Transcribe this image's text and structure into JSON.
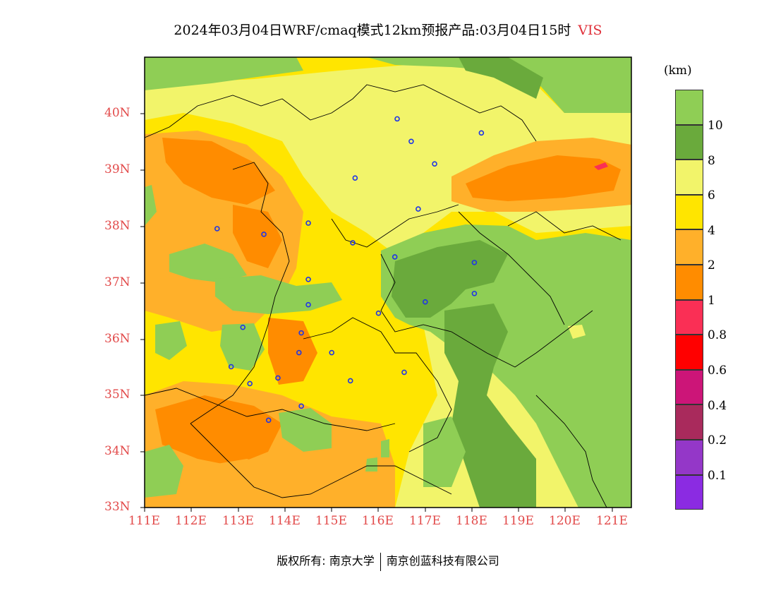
{
  "title": {
    "text": "2024年03月04日WRF/cmaq模式12km预报产品:03月04日15时",
    "variable": "VIS"
  },
  "axes": {
    "lat_labels": [
      "40N",
      "39N",
      "38N",
      "37N",
      "36N",
      "35N",
      "34N",
      "33N"
    ],
    "lon_labels": [
      "111E",
      "112E",
      "113E",
      "114E",
      "115E",
      "116E",
      "117E",
      "118E",
      "119E",
      "120E",
      "121E"
    ],
    "lat_range": [
      33,
      40.5
    ],
    "lon_range": [
      111,
      121.4
    ]
  },
  "colorbar": {
    "unit": "(km)",
    "labels": [
      "10",
      "8",
      "6",
      "4",
      "2",
      "1",
      "0.8",
      "0.6",
      "0.4",
      "0.2",
      "0.1"
    ],
    "colors": [
      "#8fce55",
      "#6aaa3c",
      "#f2f46a",
      "#ffe500",
      "#ffb02a",
      "#ff8c00",
      "#fa2f55",
      "#ff0000",
      "#cc1578",
      "#a92a5c",
      "#9437c8",
      "#8b2be2"
    ]
  },
  "stations": [
    [
      116.4,
      39.9
    ],
    [
      116.7,
      39.5
    ],
    [
      118.2,
      39.65
    ],
    [
      117.2,
      39.1
    ],
    [
      115.5,
      38.85
    ],
    [
      116.85,
      38.3
    ],
    [
      112.55,
      37.95
    ],
    [
      113.55,
      37.85
    ],
    [
      114.5,
      38.05
    ],
    [
      115.45,
      37.7
    ],
    [
      116.35,
      37.45
    ],
    [
      118.05,
      37.35
    ],
    [
      114.5,
      37.05
    ],
    [
      114.5,
      36.6
    ],
    [
      116.0,
      36.45
    ],
    [
      117.0,
      36.65
    ],
    [
      118.05,
      36.8
    ],
    [
      113.1,
      36.2
    ],
    [
      114.35,
      36.1
    ],
    [
      114.3,
      35.75
    ],
    [
      115.0,
      35.75
    ],
    [
      112.85,
      35.5
    ],
    [
      113.25,
      35.2
    ],
    [
      113.85,
      35.3
    ],
    [
      115.4,
      35.25
    ],
    [
      116.55,
      35.4
    ],
    [
      114.35,
      34.8
    ],
    [
      113.65,
      34.55
    ]
  ],
  "copyright": {
    "left": "版权所有: 南京大学",
    "right": "南京创蓝科技有限公司"
  }
}
